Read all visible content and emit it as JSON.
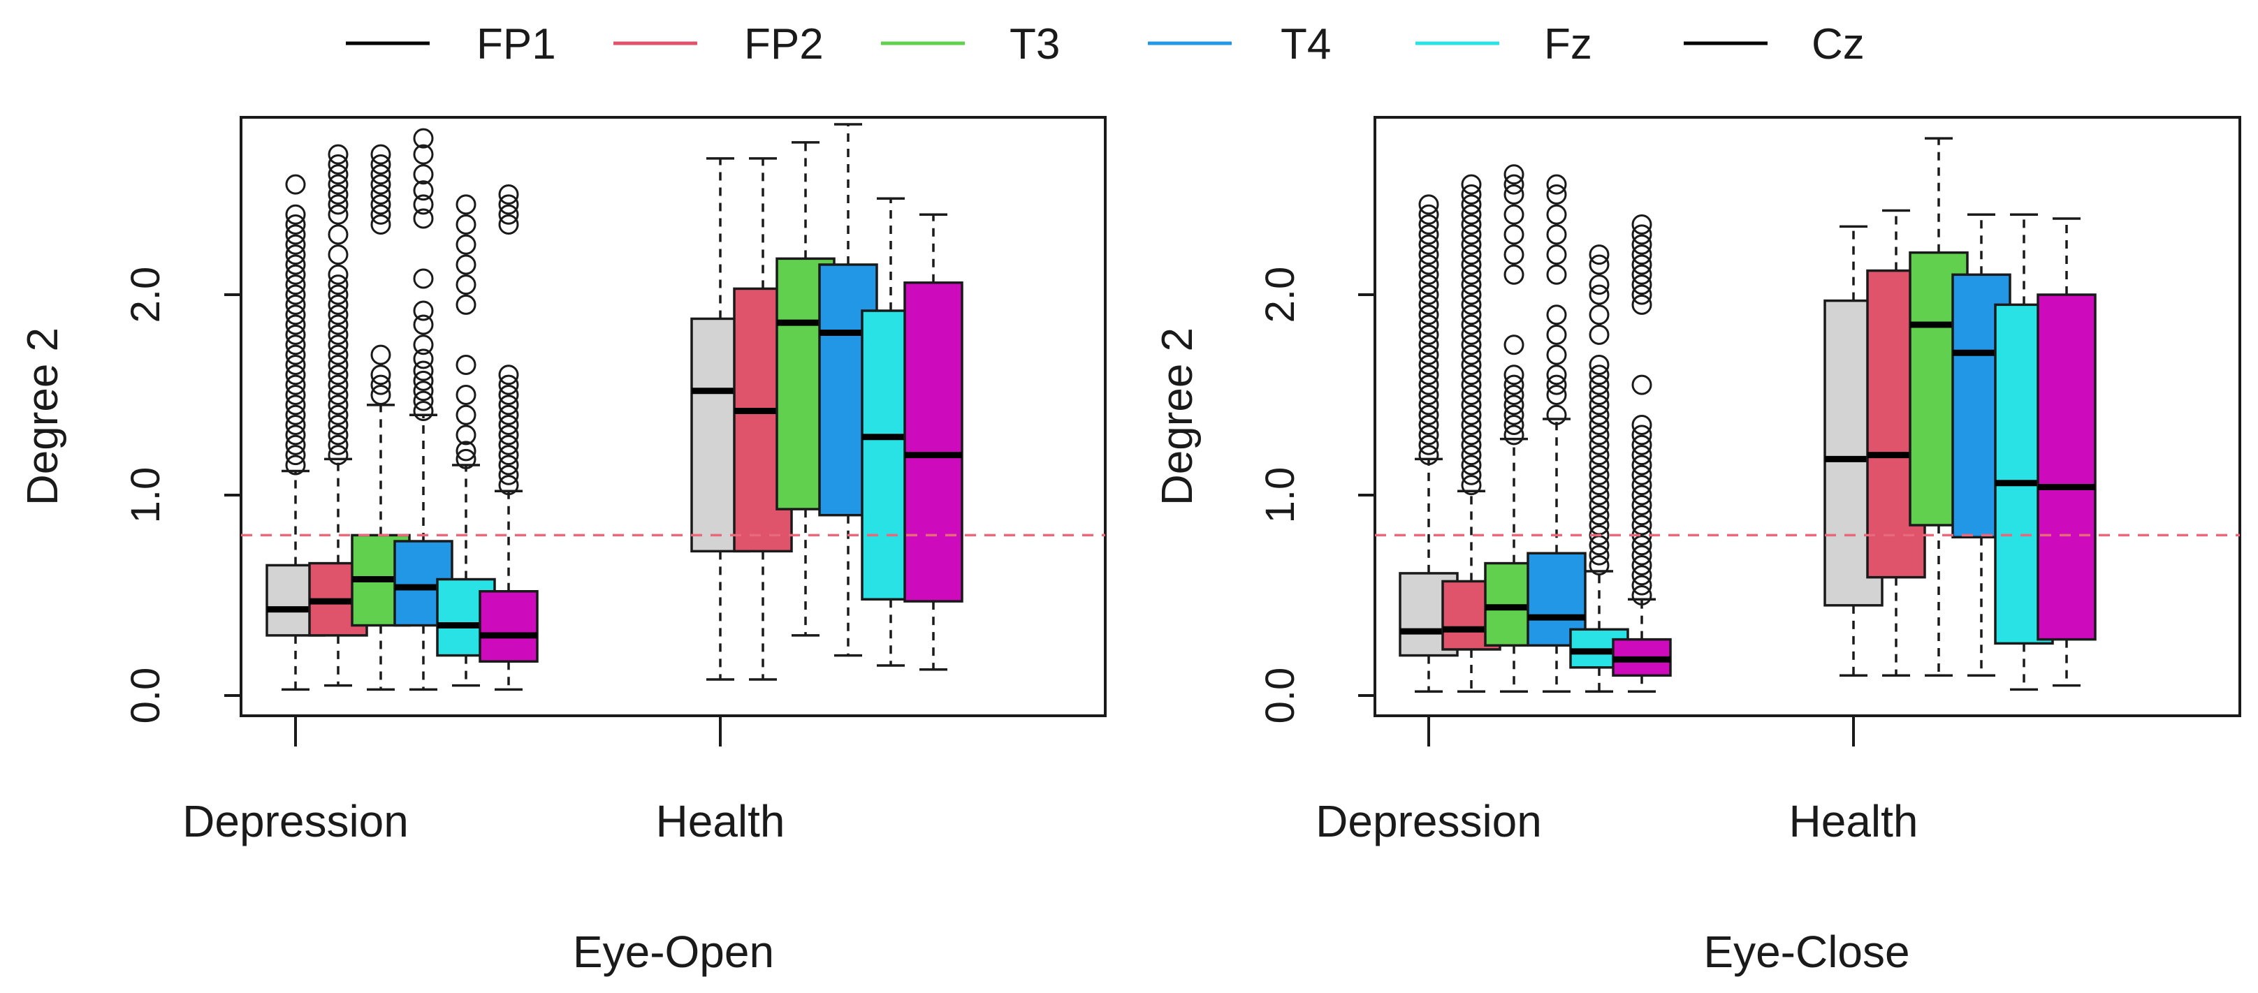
{
  "legend": [
    {
      "label": "FP1",
      "color": "#000000"
    },
    {
      "label": "FP2",
      "color": "#df536b"
    },
    {
      "label": "T3",
      "color": "#61d04f"
    },
    {
      "label": "T4",
      "color": "#2297e6"
    },
    {
      "label": "Fz",
      "color": "#28e2e5"
    },
    {
      "label": "Cz",
      "color": "#000000"
    }
  ],
  "box_colors": [
    "#d3d3d3",
    "#df536b",
    "#61d04f",
    "#2297e6",
    "#28e2e5",
    "#cd0bbc"
  ],
  "reference_line": {
    "value": 0.8,
    "color": "#e8687c"
  },
  "chart_data": [
    {
      "type": "boxplot",
      "title": "",
      "xlabel": "Eye-Open",
      "ylabel": "Degree 2",
      "ylim": [
        0,
        2.8
      ],
      "yticks": [
        0.0,
        1.0,
        2.0
      ],
      "ytick_labels": [
        "0.0",
        "1.0",
        "2.0"
      ],
      "group_labels": [
        "Depression",
        "Health"
      ],
      "boxes": [
        {
          "group": "Depression",
          "channel": "FP1",
          "whisker_low": 0.03,
          "q1": 0.3,
          "median": 0.43,
          "q3": 0.65,
          "whisker_high": 1.12,
          "outliers": [
            1.15,
            1.2,
            1.25,
            1.3,
            1.35,
            1.4,
            1.45,
            1.5,
            1.55,
            1.6,
            1.65,
            1.7,
            1.75,
            1.8,
            1.85,
            1.9,
            1.95,
            2.0,
            2.05,
            2.1,
            2.15,
            2.2,
            2.25,
            2.3,
            2.35,
            2.4,
            2.55
          ]
        },
        {
          "group": "Depression",
          "channel": "FP2",
          "whisker_low": 0.05,
          "q1": 0.3,
          "median": 0.47,
          "q3": 0.66,
          "whisker_high": 1.18,
          "outliers": [
            1.2,
            1.25,
            1.3,
            1.35,
            1.4,
            1.45,
            1.5,
            1.55,
            1.6,
            1.65,
            1.7,
            1.75,
            1.8,
            1.85,
            1.9,
            1.95,
            2.0,
            2.05,
            2.1,
            2.2,
            2.3,
            2.4,
            2.45,
            2.5,
            2.55,
            2.6,
            2.65,
            2.7
          ]
        },
        {
          "group": "Depression",
          "channel": "T3",
          "whisker_low": 0.03,
          "q1": 0.35,
          "median": 0.58,
          "q3": 0.8,
          "whisker_high": 1.45,
          "outliers": [
            1.5,
            1.55,
            1.6,
            1.7,
            2.35,
            2.4,
            2.45,
            2.5,
            2.55,
            2.6,
            2.65,
            2.7
          ]
        },
        {
          "group": "Depression",
          "channel": "T4",
          "whisker_low": 0.03,
          "q1": 0.35,
          "median": 0.54,
          "q3": 0.77,
          "whisker_high": 1.4,
          "outliers": [
            1.42,
            1.47,
            1.52,
            1.57,
            1.62,
            1.68,
            1.75,
            1.85,
            1.92,
            2.08,
            2.38,
            2.45,
            2.52,
            2.6,
            2.7,
            2.78
          ]
        },
        {
          "group": "Depression",
          "channel": "Fz",
          "whisker_low": 0.05,
          "q1": 0.2,
          "median": 0.35,
          "q3": 0.58,
          "whisker_high": 1.15,
          "outliers": [
            1.18,
            1.22,
            1.3,
            1.4,
            1.5,
            1.65,
            1.95,
            2.05,
            2.15,
            2.25,
            2.35,
            2.45
          ]
        },
        {
          "group": "Depression",
          "channel": "Cz",
          "whisker_low": 0.03,
          "q1": 0.17,
          "median": 0.3,
          "q3": 0.52,
          "whisker_high": 1.02,
          "outliers": [
            1.05,
            1.1,
            1.15,
            1.2,
            1.25,
            1.3,
            1.35,
            1.4,
            1.45,
            1.5,
            1.55,
            1.6,
            2.35,
            2.4,
            2.45,
            2.5
          ]
        },
        {
          "group": "Health",
          "channel": "FP1",
          "whisker_low": 0.08,
          "q1": 0.72,
          "median": 1.52,
          "q3": 1.88,
          "whisker_high": 2.68,
          "outliers": []
        },
        {
          "group": "Health",
          "channel": "FP2",
          "whisker_low": 0.08,
          "q1": 0.72,
          "median": 1.42,
          "q3": 2.03,
          "whisker_high": 2.68,
          "outliers": []
        },
        {
          "group": "Health",
          "channel": "T3",
          "whisker_low": 0.3,
          "q1": 0.93,
          "median": 1.86,
          "q3": 2.18,
          "whisker_high": 2.76,
          "outliers": []
        },
        {
          "group": "Health",
          "channel": "T4",
          "whisker_low": 0.2,
          "q1": 0.9,
          "median": 1.81,
          "q3": 2.15,
          "whisker_high": 2.85,
          "outliers": []
        },
        {
          "group": "Health",
          "channel": "Fz",
          "whisker_low": 0.15,
          "q1": 0.48,
          "median": 1.29,
          "q3": 1.92,
          "whisker_high": 2.48,
          "outliers": []
        },
        {
          "group": "Health",
          "channel": "Cz",
          "whisker_low": 0.13,
          "q1": 0.47,
          "median": 1.2,
          "q3": 2.06,
          "whisker_high": 2.4,
          "outliers": []
        }
      ]
    },
    {
      "type": "boxplot",
      "title": "",
      "xlabel": "Eye-Close",
      "ylabel": "Degree 2",
      "ylim": [
        0,
        2.8
      ],
      "yticks": [
        0.0,
        1.0,
        2.0
      ],
      "ytick_labels": [
        "0.0",
        "1.0",
        "2.0"
      ],
      "group_labels": [
        "Depression",
        "Health"
      ],
      "boxes": [
        {
          "group": "Depression",
          "channel": "FP1",
          "whisker_low": 0.02,
          "q1": 0.2,
          "median": 0.32,
          "q3": 0.61,
          "whisker_high": 1.18,
          "outliers": [
            1.2,
            1.25,
            1.3,
            1.35,
            1.4,
            1.45,
            1.5,
            1.55,
            1.6,
            1.65,
            1.7,
            1.75,
            1.8,
            1.85,
            1.9,
            1.95,
            2.0,
            2.05,
            2.1,
            2.15,
            2.2,
            2.25,
            2.3,
            2.35,
            2.4,
            2.45
          ]
        },
        {
          "group": "Depression",
          "channel": "FP2",
          "whisker_low": 0.02,
          "q1": 0.23,
          "median": 0.33,
          "q3": 0.57,
          "whisker_high": 1.02,
          "outliers": [
            1.05,
            1.1,
            1.15,
            1.2,
            1.25,
            1.3,
            1.35,
            1.4,
            1.45,
            1.5,
            1.55,
            1.6,
            1.65,
            1.7,
            1.75,
            1.8,
            1.85,
            1.9,
            1.95,
            2.0,
            2.05,
            2.1,
            2.15,
            2.2,
            2.25,
            2.3,
            2.35,
            2.4,
            2.45,
            2.5,
            2.55
          ]
        },
        {
          "group": "Depression",
          "channel": "T3",
          "whisker_low": 0.02,
          "q1": 0.25,
          "median": 0.44,
          "q3": 0.66,
          "whisker_high": 1.28,
          "outliers": [
            1.3,
            1.35,
            1.4,
            1.45,
            1.5,
            1.55,
            1.6,
            1.75,
            2.1,
            2.2,
            2.3,
            2.4,
            2.5,
            2.55,
            2.6
          ]
        },
        {
          "group": "Depression",
          "channel": "T4",
          "whisker_low": 0.02,
          "q1": 0.25,
          "median": 0.39,
          "q3": 0.71,
          "whisker_high": 1.38,
          "outliers": [
            1.4,
            1.5,
            1.55,
            1.6,
            1.7,
            1.8,
            1.9,
            2.1,
            2.2,
            2.3,
            2.4,
            2.5,
            2.55
          ]
        },
        {
          "group": "Depression",
          "channel": "Fz",
          "whisker_low": 0.02,
          "q1": 0.14,
          "median": 0.22,
          "q3": 0.33,
          "whisker_high": 0.62,
          "outliers": [
            0.65,
            0.7,
            0.75,
            0.8,
            0.85,
            0.9,
            0.95,
            1.0,
            1.05,
            1.1,
            1.15,
            1.2,
            1.25,
            1.3,
            1.35,
            1.4,
            1.45,
            1.5,
            1.55,
            1.6,
            1.65,
            1.8,
            1.9,
            2.0,
            2.05,
            2.15,
            2.2
          ]
        },
        {
          "group": "Depression",
          "channel": "Cz",
          "whisker_low": 0.02,
          "q1": 0.1,
          "median": 0.18,
          "q3": 0.28,
          "whisker_high": 0.48,
          "outliers": [
            0.5,
            0.55,
            0.6,
            0.65,
            0.7,
            0.75,
            0.8,
            0.85,
            0.9,
            0.95,
            1.0,
            1.05,
            1.1,
            1.15,
            1.2,
            1.25,
            1.3,
            1.35,
            1.55,
            1.95,
            2.0,
            2.05,
            2.1,
            2.15,
            2.2,
            2.25,
            2.3,
            2.35
          ]
        },
        {
          "group": "Health",
          "channel": "FP1",
          "whisker_low": 0.1,
          "q1": 0.45,
          "median": 1.18,
          "q3": 1.97,
          "whisker_high": 2.34,
          "outliers": []
        },
        {
          "group": "Health",
          "channel": "FP2",
          "whisker_low": 0.1,
          "q1": 0.59,
          "median": 1.2,
          "q3": 2.12,
          "whisker_high": 2.42,
          "outliers": []
        },
        {
          "group": "Health",
          "channel": "T3",
          "whisker_low": 0.1,
          "q1": 0.85,
          "median": 1.85,
          "q3": 2.21,
          "whisker_high": 2.78,
          "outliers": []
        },
        {
          "group": "Health",
          "channel": "T4",
          "whisker_low": 0.1,
          "q1": 0.79,
          "median": 1.71,
          "q3": 2.1,
          "whisker_high": 2.4,
          "outliers": []
        },
        {
          "group": "Health",
          "channel": "Fz",
          "whisker_low": 0.03,
          "q1": 0.26,
          "median": 1.06,
          "q3": 1.95,
          "whisker_high": 2.4,
          "outliers": []
        },
        {
          "group": "Health",
          "channel": "Cz",
          "whisker_low": 0.05,
          "q1": 0.28,
          "median": 1.04,
          "q3": 2.0,
          "whisker_high": 2.38,
          "outliers": []
        }
      ]
    }
  ]
}
